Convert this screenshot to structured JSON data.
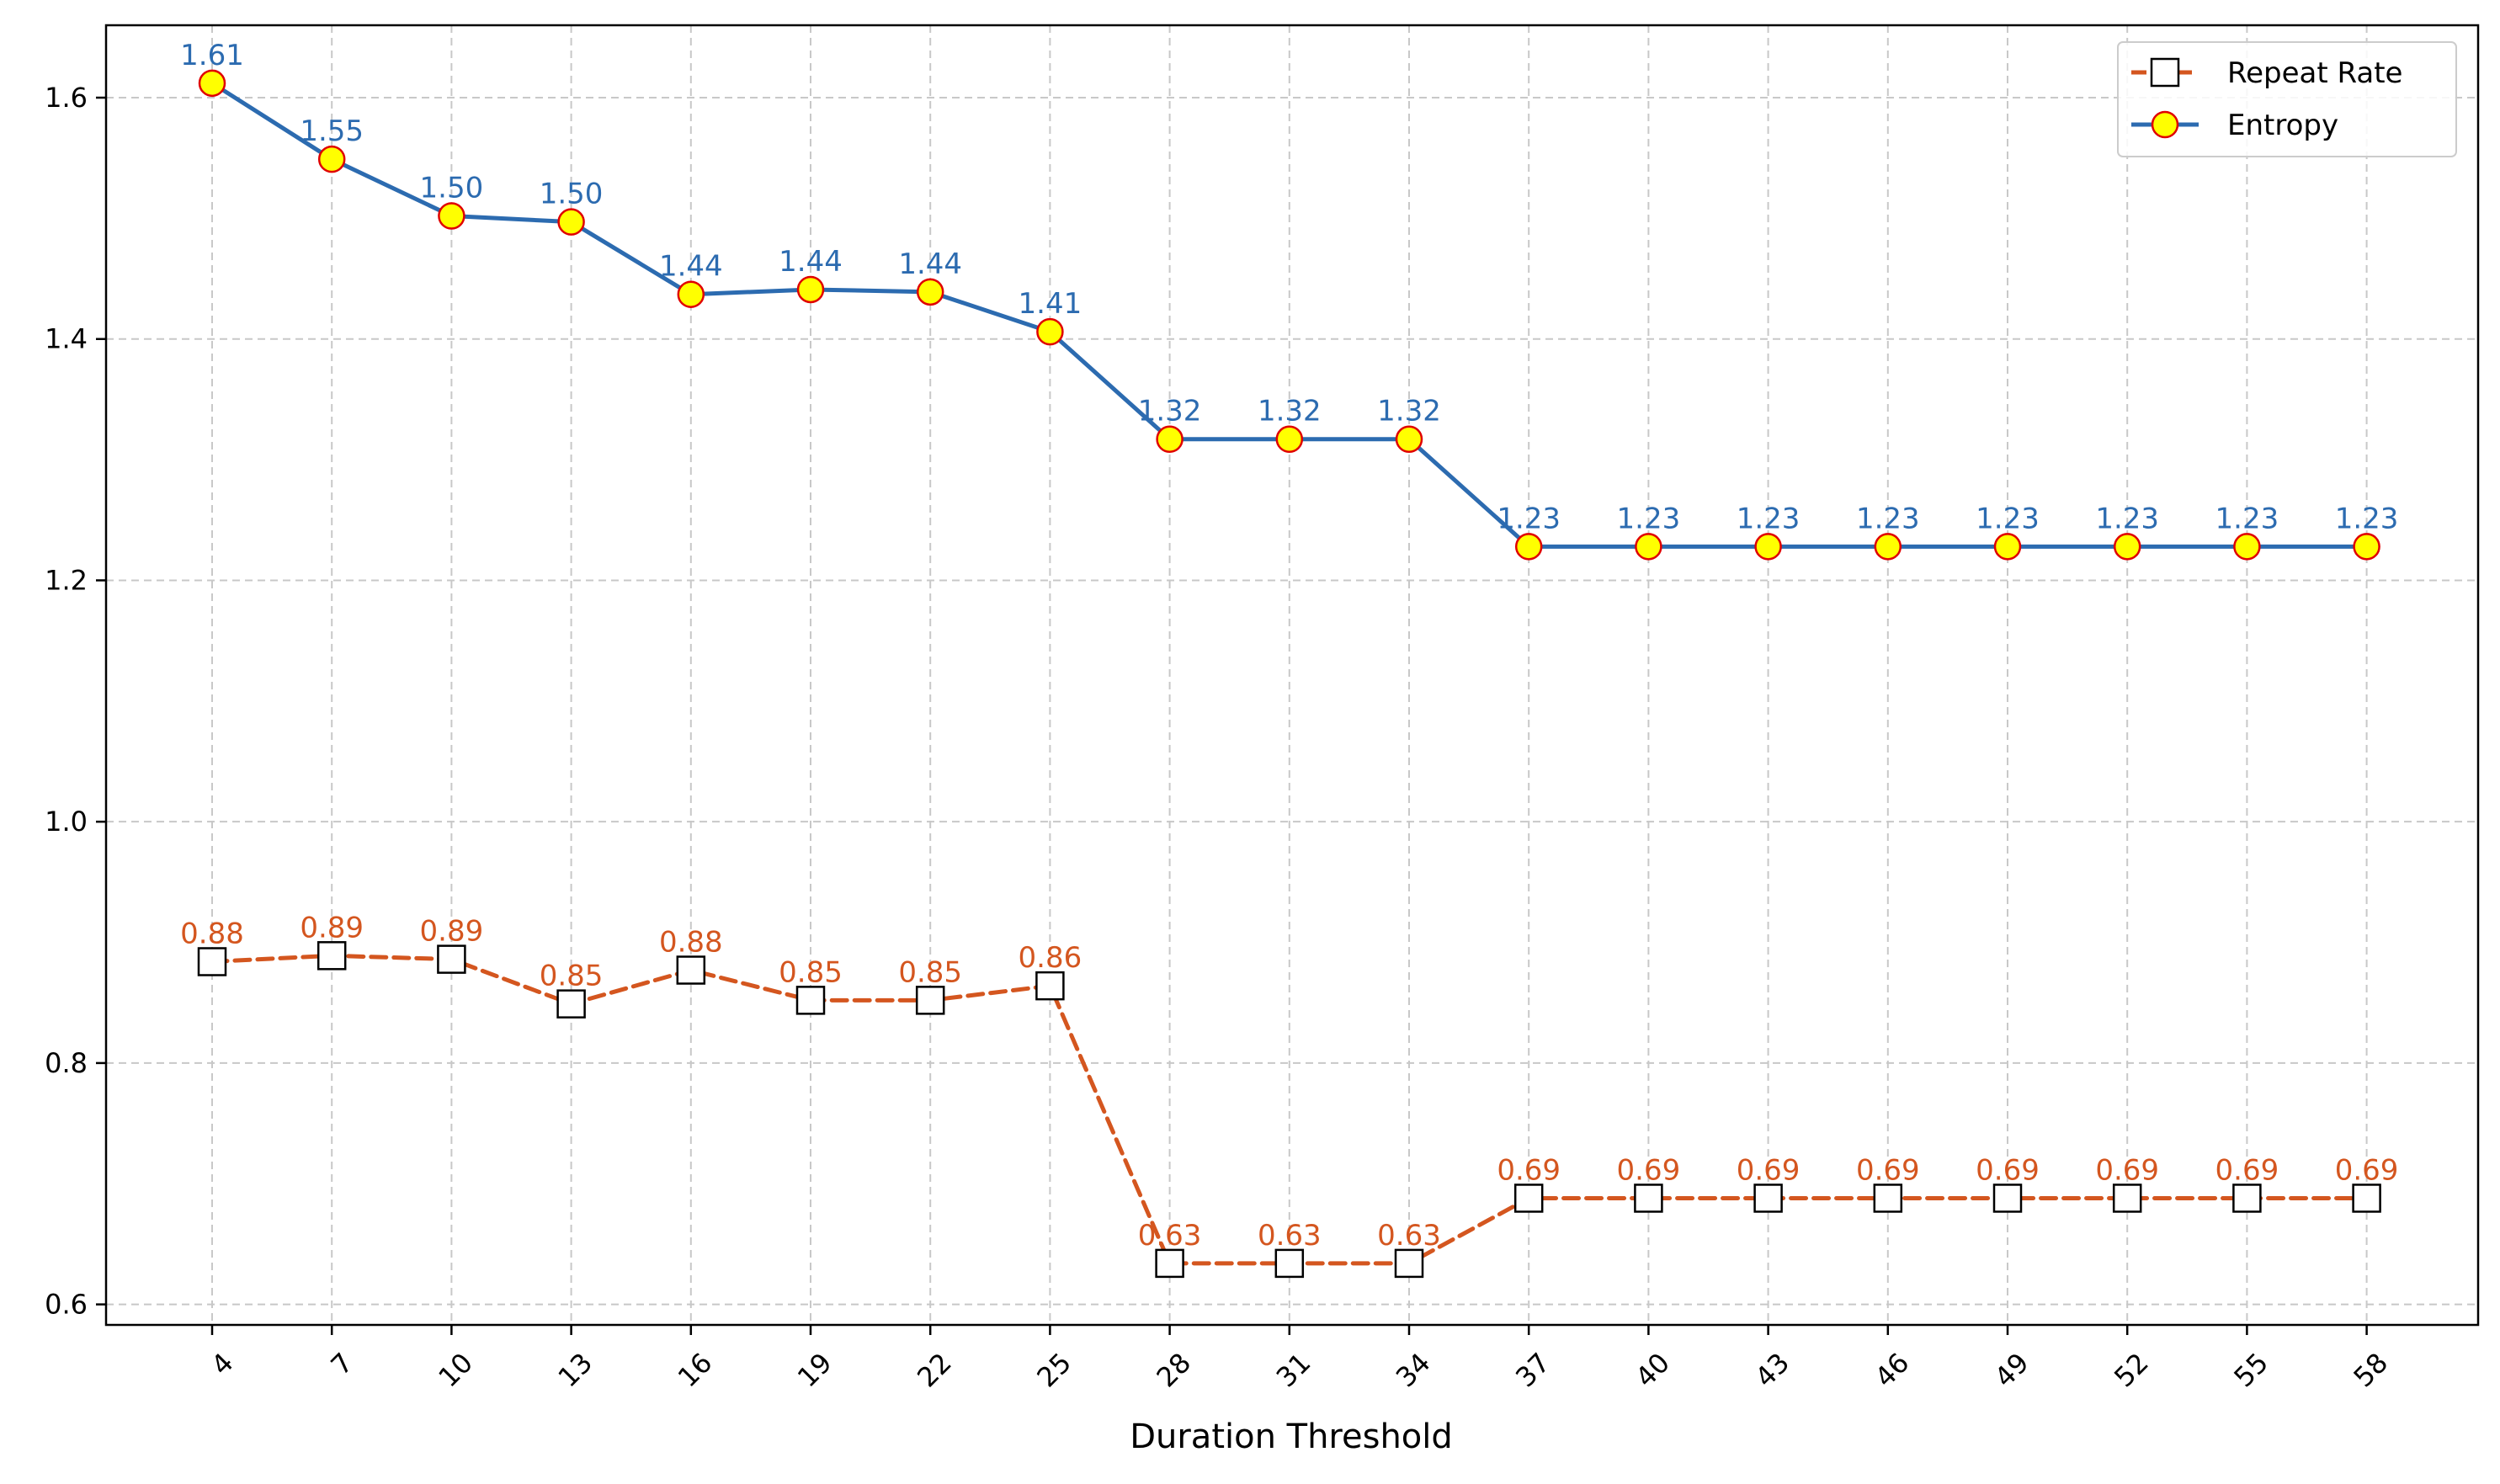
{
  "chart_data": {
    "type": "line",
    "title": "",
    "xlabel": "Duration Threshold",
    "ylabel": "",
    "categories": [
      "4",
      "7",
      "10",
      "13",
      "16",
      "19",
      "22",
      "25",
      "28",
      "31",
      "34",
      "37",
      "40",
      "43",
      "46",
      "49",
      "52",
      "55",
      "58"
    ],
    "ylim": [
      0.583,
      1.66
    ],
    "yticks": [
      "0.6",
      "0.8",
      "1.0",
      "1.2",
      "1.4",
      "1.6"
    ],
    "ytick_values": [
      0.6,
      0.8,
      1.0,
      1.2,
      1.4,
      1.6
    ],
    "grid": true,
    "legend_position": "top-right",
    "series": [
      {
        "name": "Repeat Rate",
        "values": [
          0.884,
          0.889,
          0.886,
          0.849,
          0.877,
          0.852,
          0.852,
          0.864,
          0.634,
          0.634,
          0.634,
          0.688,
          0.688,
          0.688,
          0.688,
          0.688,
          0.688,
          0.688,
          0.688
        ],
        "labels": [
          "0.88",
          "0.89",
          "0.89",
          "0.85",
          "0.88",
          "0.85",
          "0.85",
          "0.86",
          "0.63",
          "0.63",
          "0.63",
          "0.69",
          "0.69",
          "0.69",
          "0.69",
          "0.69",
          "0.69",
          "0.69",
          "0.69"
        ],
        "color": "#d4561f",
        "line_style": "dashed",
        "marker": "square",
        "marker_face": "#ffffff",
        "marker_edge": "#000000"
      },
      {
        "name": "Entropy",
        "values": [
          1.612,
          1.549,
          1.502,
          1.497,
          1.437,
          1.441,
          1.439,
          1.406,
          1.317,
          1.317,
          1.317,
          1.228,
          1.228,
          1.228,
          1.228,
          1.228,
          1.228,
          1.228,
          1.228
        ],
        "labels": [
          "1.61",
          "1.55",
          "1.50",
          "1.50",
          "1.44",
          "1.44",
          "1.44",
          "1.41",
          "1.32",
          "1.32",
          "1.32",
          "1.23",
          "1.23",
          "1.23",
          "1.23",
          "1.23",
          "1.23",
          "1.23",
          "1.23"
        ],
        "color": "#2c6bb0",
        "line_style": "solid",
        "marker": "circle",
        "marker_face": "#ffff00",
        "marker_edge": "#e00000"
      }
    ]
  }
}
